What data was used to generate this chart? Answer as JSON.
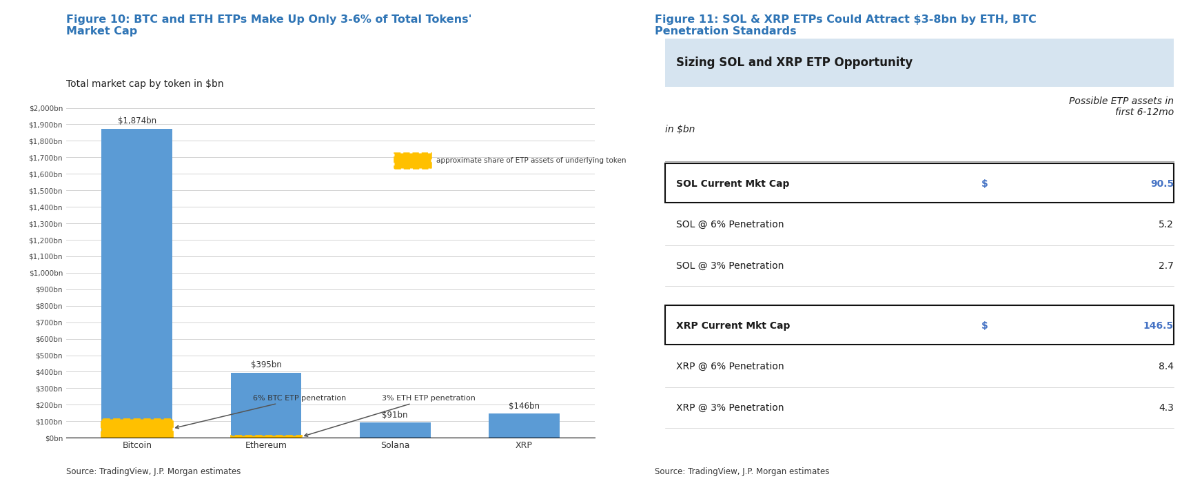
{
  "fig10_title": "Figure 10: BTC and ETH ETPs Make Up Only 3-6% of Total Tokens'\nMarket Cap",
  "fig10_subtitle": "Total market cap by token in $bn",
  "fig10_source": "Source: TradingView, J.P. Morgan estimates",
  "bar_categories": [
    "Bitcoin",
    "Ethereum",
    "Solana",
    "XRP"
  ],
  "bar_values": [
    1874,
    395,
    91,
    146
  ],
  "bar_etp_btc": 112,
  "bar_etp_eth": 12,
  "bar_color": "#5B9BD5",
  "bar_etp_color": "#FFC000",
  "ytick_labels": [
    "$0bn",
    "$100bn",
    "$200bn",
    "$300bn",
    "$400bn",
    "$500bn",
    "$600bn",
    "$700bn",
    "$800bn",
    "$900bn",
    "$1,000bn",
    "$1,100bn",
    "$1,200bn",
    "$1,300bn",
    "$1,400bn",
    "$1,500bn",
    "$1,600bn",
    "$1,700bn",
    "$1,800bn",
    "$1,900bn",
    "$2,000bn"
  ],
  "ytick_values": [
    0,
    100,
    200,
    300,
    400,
    500,
    600,
    700,
    800,
    900,
    1000,
    1100,
    1200,
    1300,
    1400,
    1500,
    1600,
    1700,
    1800,
    1900,
    2000
  ],
  "bar_labels": [
    "$1,874bn",
    "$395bn",
    "$91bn",
    "$146bn"
  ],
  "annotation_btc": "6% BTC ETP penetration",
  "annotation_eth": "3% ETH ETP penetration",
  "annotation_legend": "approximate share of ETP assets of underlying token",
  "title_color": "#2E74B5",
  "fig11_title": "Figure 11: SOL & XRP ETPs Could Attract $3-8bn by ETH, BTC\nPenetration Standards",
  "fig11_source": "Source: TradingView, J.P. Morgan estimates",
  "table_header": "Sizing SOL and XRP ETP Opportunity",
  "table_col2_header": "Possible ETP assets in\nfirst 6-12mo",
  "table_col1_label": "in $bn",
  "table_rows": [
    {
      "label": "SOL Current Mkt Cap",
      "dollar": "$",
      "value": "90.5",
      "bold": true,
      "bordered": true,
      "group": "SOL"
    },
    {
      "label": "SOL @ 6% Penetration",
      "dollar": "",
      "value": "5.2",
      "bold": false,
      "bordered": false,
      "group": "SOL"
    },
    {
      "label": "SOL @ 3% Penetration",
      "dollar": "",
      "value": "2.7",
      "bold": false,
      "bordered": false,
      "group": "SOL"
    },
    {
      "label": "XRP Current Mkt Cap",
      "dollar": "$",
      "value": "146.5",
      "bold": true,
      "bordered": true,
      "group": "XRP"
    },
    {
      "label": "XRP @ 6% Penetration",
      "dollar": "",
      "value": "8.4",
      "bold": false,
      "bordered": false,
      "group": "XRP"
    },
    {
      "label": "XRP @ 3% Penetration",
      "dollar": "",
      "value": "4.3",
      "bold": false,
      "bordered": false,
      "group": "XRP"
    }
  ],
  "value_color_highlight": "#4472C4",
  "header_bg_color": "#D6E4F0",
  "background_color": "#FFFFFF"
}
